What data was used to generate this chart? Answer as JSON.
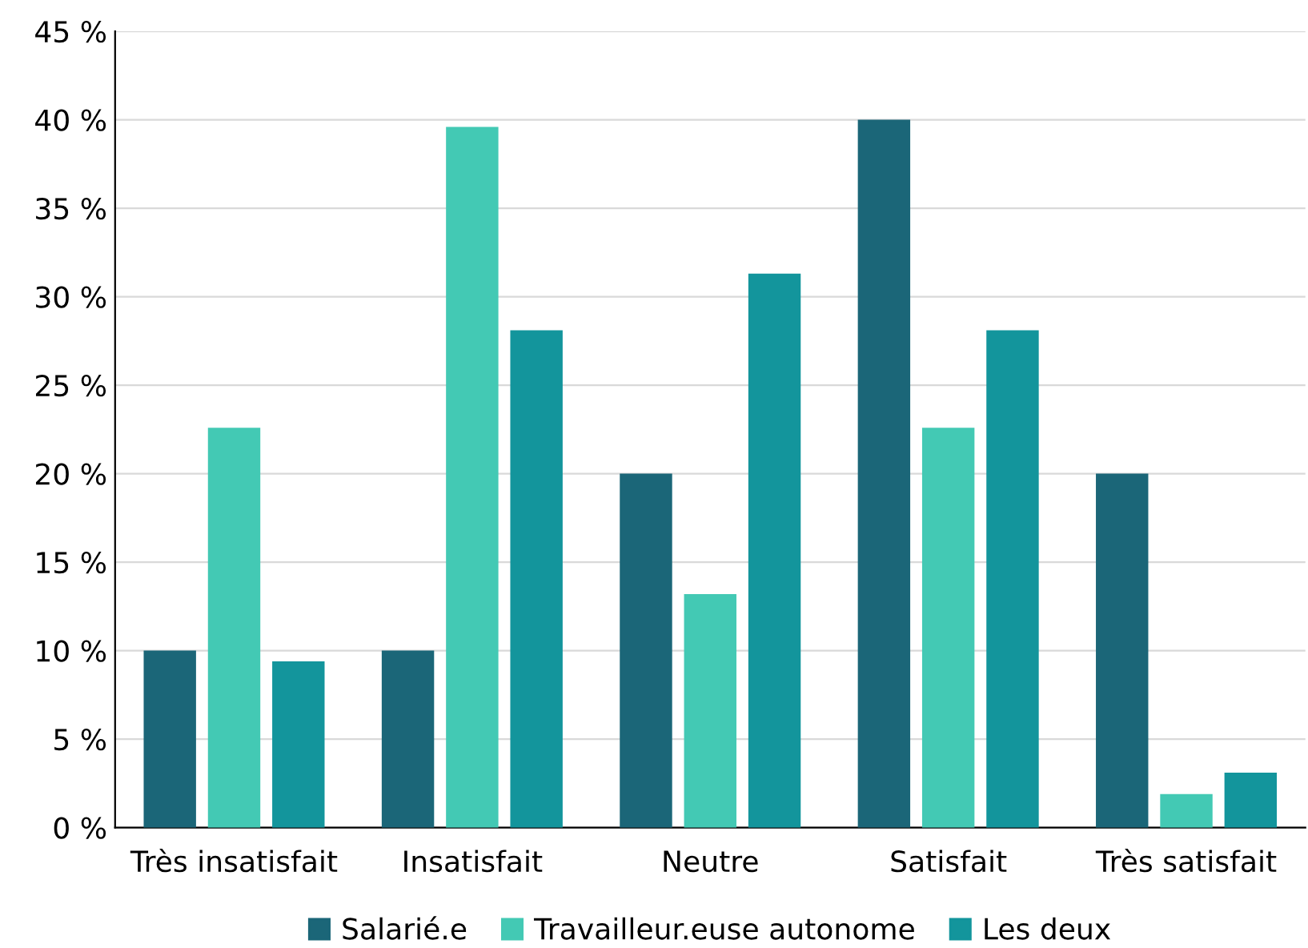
{
  "chart_data": {
    "type": "bar",
    "categories": [
      "Très insatisfait",
      "Insatisfait",
      "Neutre",
      "Satisfait",
      "Très satisfait"
    ],
    "series": [
      {
        "name": "Salarié.e",
        "color": "#1b6678",
        "values": [
          10,
          10,
          20,
          40,
          20
        ]
      },
      {
        "name": "Travailleur.euse autonome",
        "color": "#43c9b4",
        "values": [
          22.6,
          39.6,
          13.2,
          22.6,
          1.9
        ]
      },
      {
        "name": "Les deux",
        "color": "#13959c",
        "values": [
          9.4,
          28.1,
          31.3,
          28.1,
          3.1
        ]
      }
    ],
    "ylim": [
      0,
      45
    ],
    "yticks": [
      {
        "value": 0,
        "label": "0 %"
      },
      {
        "value": 5,
        "label": "5 %"
      },
      {
        "value": 10,
        "label": "10 %"
      },
      {
        "value": 15,
        "label": "15 %"
      },
      {
        "value": 20,
        "label": "20 %"
      },
      {
        "value": 25,
        "label": "25 %"
      },
      {
        "value": 30,
        "label": "30 %"
      },
      {
        "value": 35,
        "label": "35 %"
      },
      {
        "value": 40,
        "label": "40 %"
      },
      {
        "value": 45,
        "label": "45 %"
      }
    ],
    "grid": "y",
    "legend": "bottom"
  }
}
